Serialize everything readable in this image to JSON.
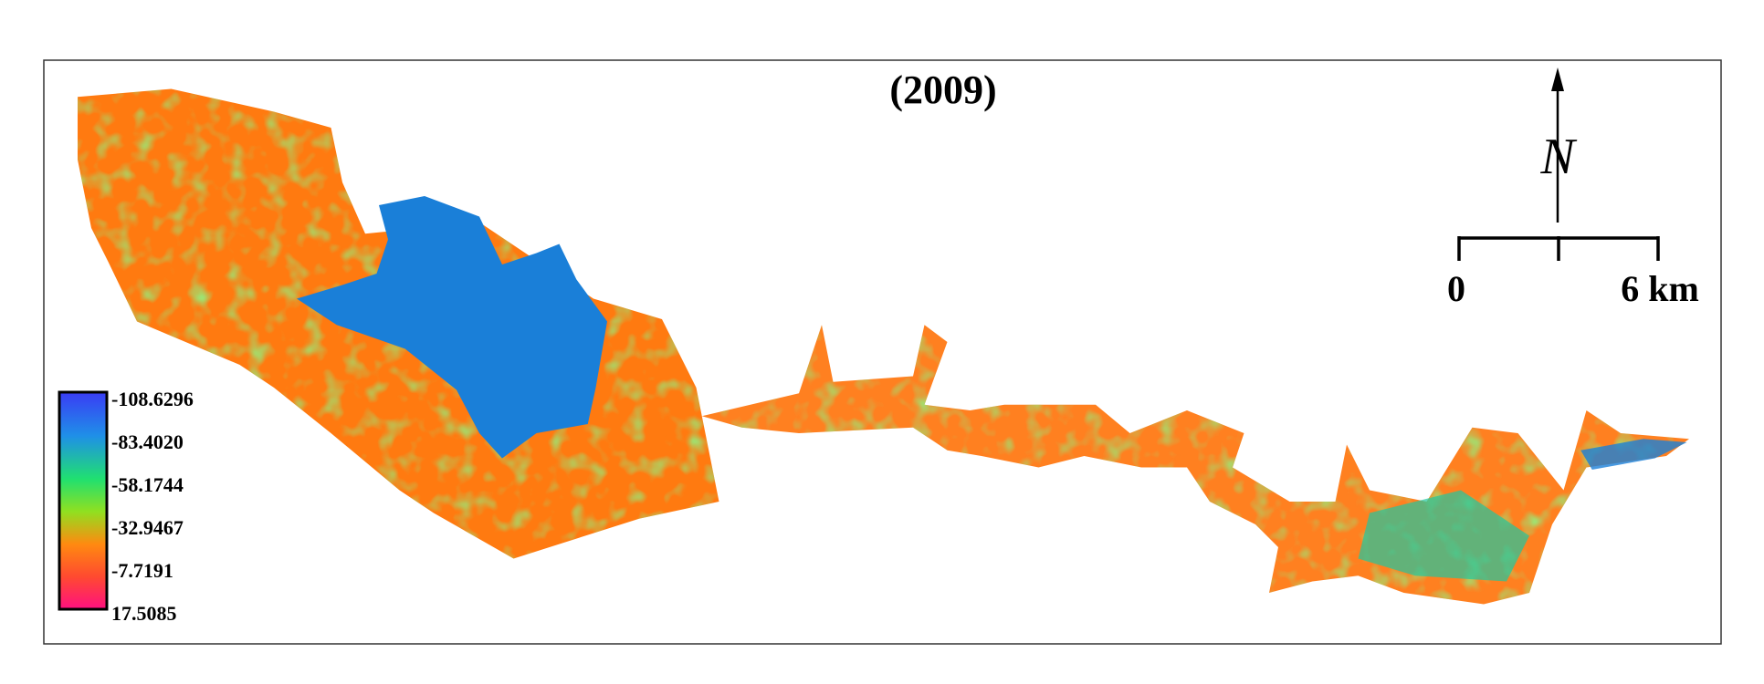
{
  "map": {
    "title": "(2009)",
    "north_label": "N",
    "scale_bar": {
      "start": "0",
      "end": "6 km"
    },
    "legend": {
      "labels": [
        "-108.6296",
        "-83.4020",
        "-58.1744",
        "-32.9467",
        "-7.7191",
        "17.5085"
      ]
    }
  }
}
